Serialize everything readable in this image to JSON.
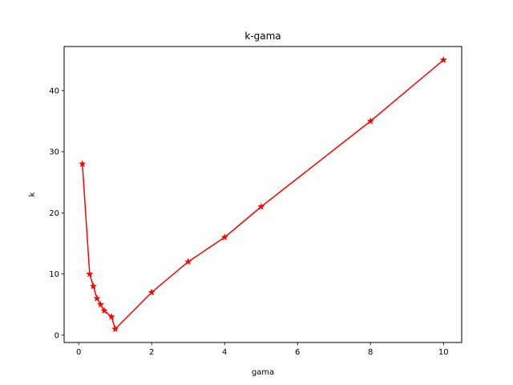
{
  "chart_data": {
    "type": "line",
    "title": "k-gama",
    "xlabel": "gama",
    "ylabel": "k",
    "xlim": [
      -0.4,
      10.5
    ],
    "ylim": [
      -1.2,
      47.2
    ],
    "xticks": [
      0,
      2,
      4,
      6,
      8,
      10
    ],
    "yticks": [
      0,
      10,
      20,
      30,
      40
    ],
    "grid": false,
    "series": [
      {
        "color": "#ff0000",
        "marker": "star",
        "x": [
          0.1,
          0.3,
          0.4,
          0.5,
          0.6,
          0.7,
          0.9,
          1,
          2,
          3,
          4,
          5,
          8,
          10
        ],
        "y": [
          28,
          10,
          8,
          6,
          5,
          4,
          3,
          1,
          7,
          12,
          16,
          21,
          35,
          45
        ]
      }
    ]
  }
}
